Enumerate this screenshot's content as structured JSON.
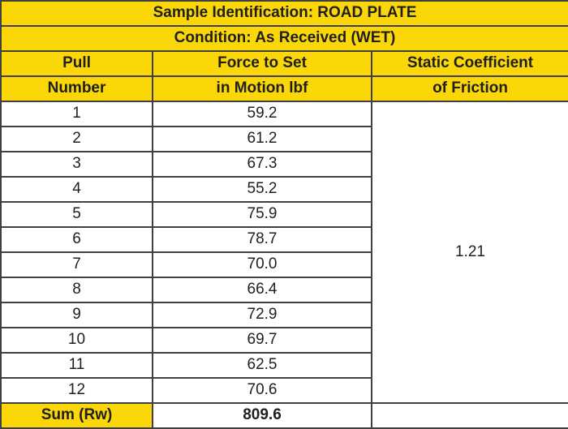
{
  "table": {
    "title": "Sample Identification: ROAD PLATE",
    "condition": "Condition: As Received (WET)",
    "headers": {
      "pull_line1": "Pull",
      "pull_line2": "Number",
      "force_line1": "Force to Set",
      "force_line2": "in Motion lbf",
      "coef_line1": "Static Coefficient",
      "coef_line2": "of Friction"
    },
    "rows": [
      {
        "pull": "1",
        "force": "59.2"
      },
      {
        "pull": "2",
        "force": "61.2"
      },
      {
        "pull": "3",
        "force": "67.3"
      },
      {
        "pull": "4",
        "force": "55.2"
      },
      {
        "pull": "5",
        "force": "75.9"
      },
      {
        "pull": "6",
        "force": "78.7"
      },
      {
        "pull": "7",
        "force": "70.0"
      },
      {
        "pull": "8",
        "force": "66.4"
      },
      {
        "pull": "9",
        "force": "72.9"
      },
      {
        "pull": "10",
        "force": "69.7"
      },
      {
        "pull": "11",
        "force": "62.5"
      },
      {
        "pull": "12",
        "force": "70.6"
      }
    ],
    "static_coefficient": "1.21",
    "sum_label": "Sum (Rw)",
    "sum_value": "809.6"
  },
  "colors": {
    "header_yellow": "#fbd707",
    "border": "#3f3f3f",
    "text": "#1f1f1f",
    "cell_background": "#ffffff"
  },
  "chart_data": {
    "type": "table",
    "title": "Sample Identification: ROAD PLATE",
    "subtitle": "Condition: As Received (WET)",
    "columns": [
      "Pull Number",
      "Force to Set in Motion lbf",
      "Static Coefficient of Friction"
    ],
    "pull_numbers": [
      1,
      2,
      3,
      4,
      5,
      6,
      7,
      8,
      9,
      10,
      11,
      12
    ],
    "force_values": [
      59.2,
      61.2,
      67.3,
      55.2,
      75.9,
      78.7,
      70.0,
      66.4,
      72.9,
      69.7,
      62.5,
      70.6
    ],
    "static_coefficient": 1.21,
    "sum_rw": 809.6
  }
}
